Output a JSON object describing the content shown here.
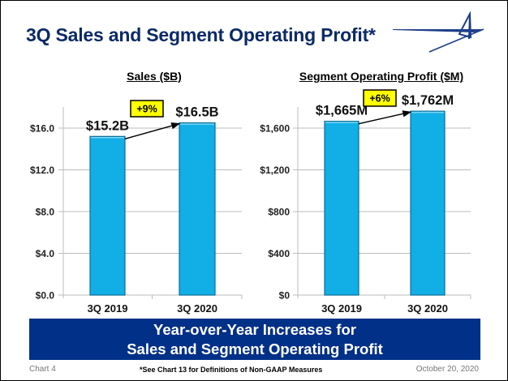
{
  "slide": {
    "title": "3Q Sales and Segment Operating Profit*",
    "banner_line1": "Year-over-Year Increases for",
    "banner_line2": "Sales and Segment Operating Profit",
    "footer_left": "Chart 4",
    "footer_center": "*See Chart 13 for Definitions of Non-GAAP Measures",
    "footer_right": "October 20, 2020",
    "colors": {
      "title": "#0b2a66",
      "banner": "#003087",
      "bar": "#12aee6",
      "bar_edge": "#0a6e96",
      "badge": "#ffff00"
    }
  },
  "chart_data": [
    {
      "type": "bar",
      "title": "Sales ($B)",
      "categories": [
        "3Q 2019",
        "3Q 2020"
      ],
      "values": [
        15.2,
        16.5
      ],
      "data_labels": [
        "$15.2B",
        "$16.5B"
      ],
      "ylim": [
        0,
        16
      ],
      "yticks": [
        0,
        4,
        8,
        12,
        16
      ],
      "ytick_labels": [
        "$0.0",
        "$4.0",
        "$8.0",
        "$12.0",
        "$16.0"
      ],
      "grid": true,
      "annotation": "+9%"
    },
    {
      "type": "bar",
      "title": "Segment Operating Profit ($M)",
      "categories": [
        "3Q 2019",
        "3Q 2020"
      ],
      "values": [
        1665,
        1762
      ],
      "data_labels": [
        "$1,665M",
        "$1,762M"
      ],
      "ylim": [
        0,
        1600
      ],
      "yticks": [
        0,
        400,
        800,
        1200,
        1600
      ],
      "ytick_labels": [
        "$0",
        "$400",
        "$800",
        "$1,200",
        "$1,600"
      ],
      "grid": true,
      "annotation": "+6%"
    }
  ]
}
